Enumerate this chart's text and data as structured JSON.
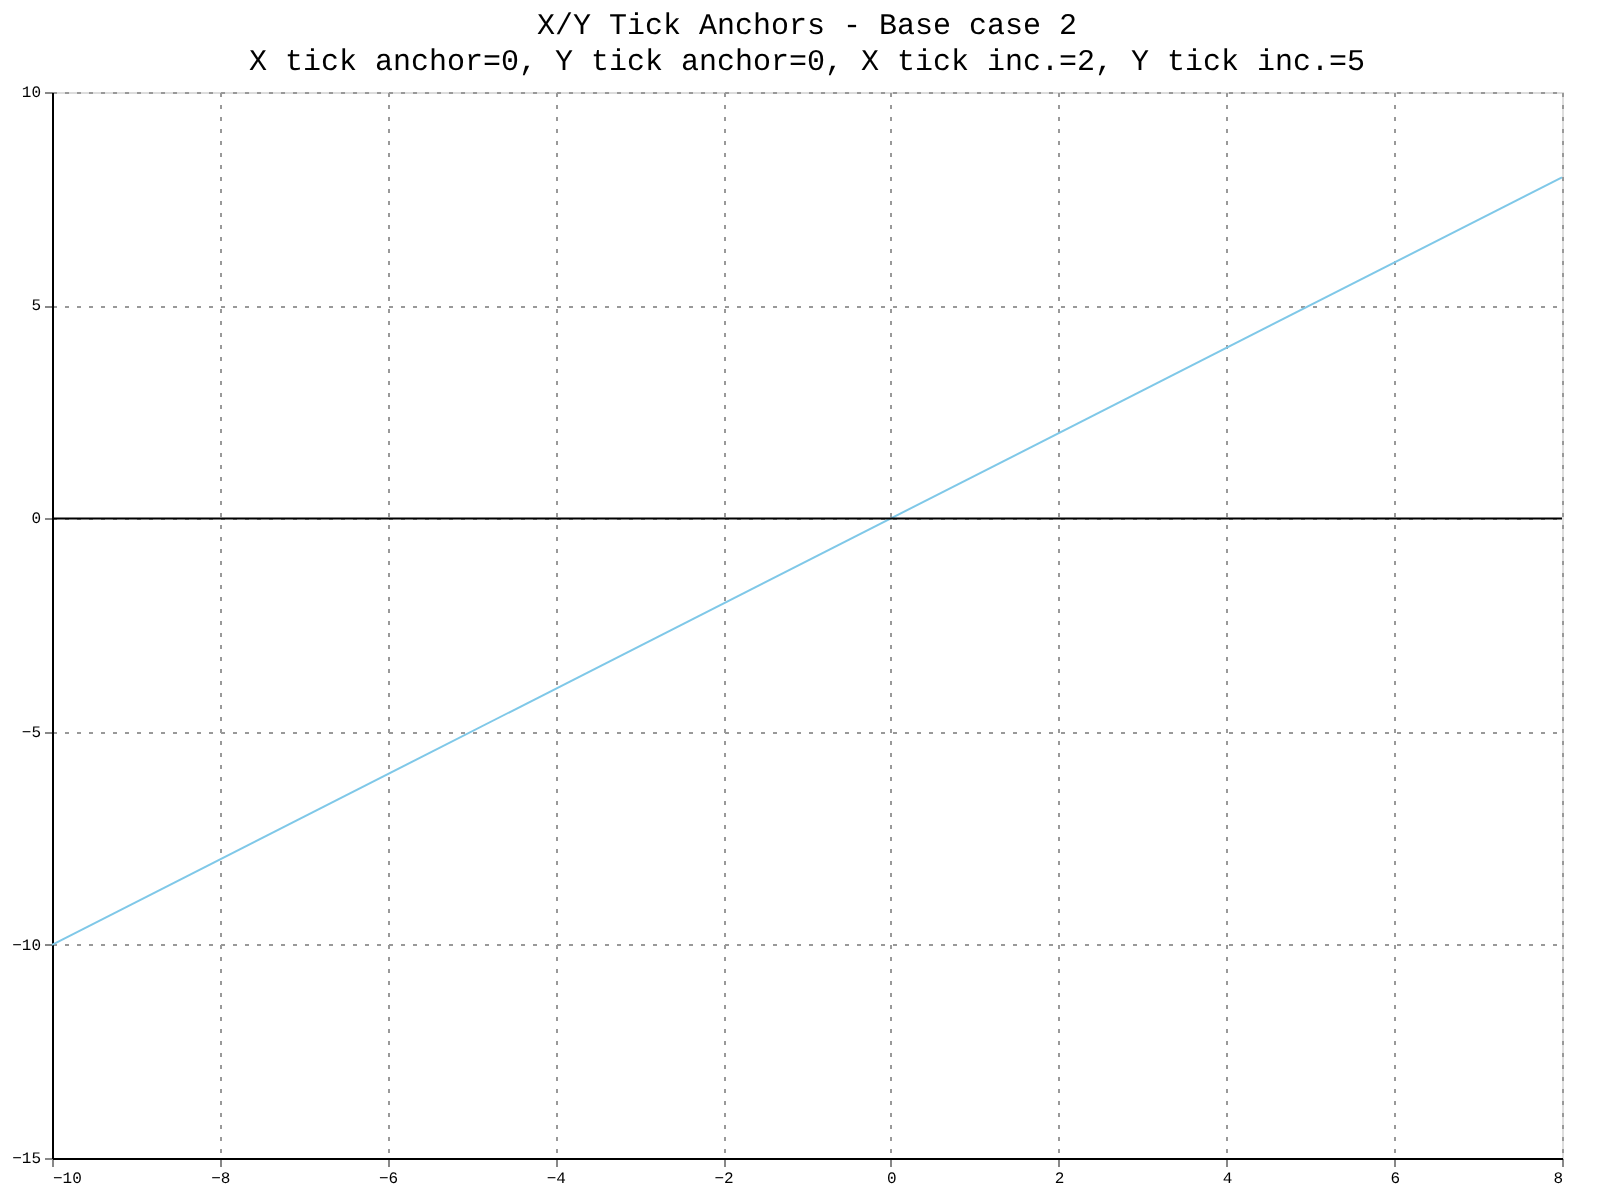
{
  "chart_data": {
    "type": "line",
    "title": "X/Y Tick Anchors - Base case 2",
    "subtitle": "X tick anchor=0, Y tick anchor=0, X tick inc.=2, Y tick inc.=5",
    "x": [
      -10,
      8
    ],
    "series": [
      {
        "color": "#7fc8e8",
        "values": [
          -10,
          8
        ]
      }
    ],
    "xlim": [
      -10,
      8
    ],
    "xticks": [
      -10,
      -8,
      -6,
      -4,
      -2,
      0,
      2,
      4,
      6,
      8
    ],
    "ylim": [
      -15,
      10
    ],
    "yticks": [
      -15,
      -10,
      -5,
      0,
      5,
      10
    ],
    "ref_lines": [
      {
        "axis": "y",
        "value": 0,
        "color": "#000000"
      }
    ],
    "grid": true,
    "marker": "none",
    "line_style": "solid"
  }
}
